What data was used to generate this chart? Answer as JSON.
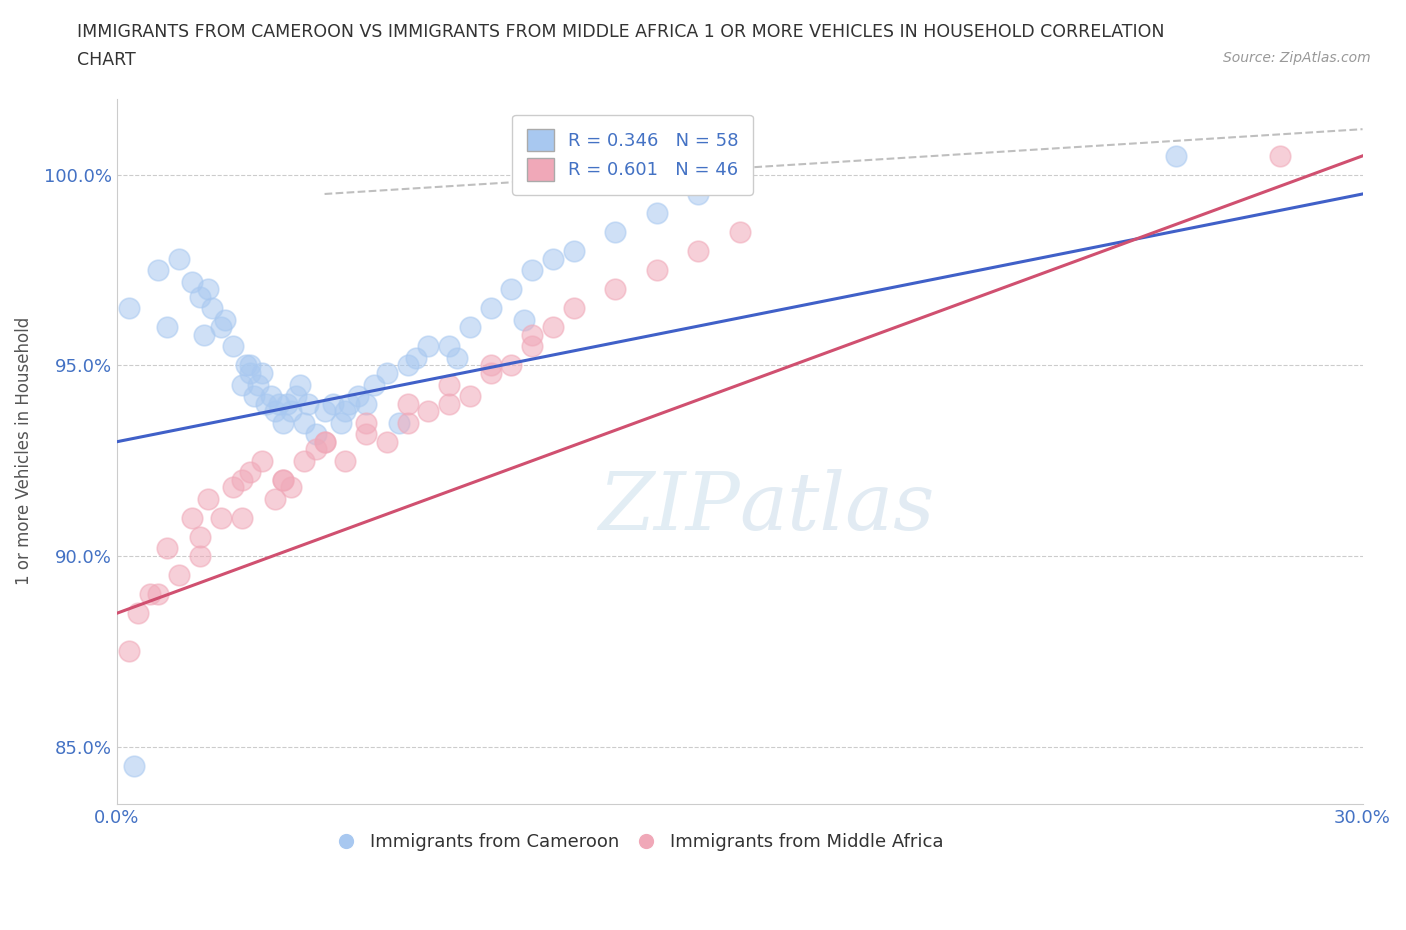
{
  "title_line1": "IMMIGRANTS FROM CAMEROON VS IMMIGRANTS FROM MIDDLE AFRICA 1 OR MORE VEHICLES IN HOUSEHOLD CORRELATION",
  "title_line2": "CHART",
  "source": "Source: ZipAtlas.com",
  "ylabel": "1 or more Vehicles in Household",
  "xlabel": "",
  "xlim": [
    0.0,
    30.0
  ],
  "ylim": [
    83.5,
    102.0
  ],
  "yticks": [
    85.0,
    90.0,
    95.0,
    100.0
  ],
  "ytick_labels": [
    "85.0%",
    "90.0%",
    "95.0%",
    "100.0%"
  ],
  "xticks": [
    0.0,
    5.0,
    10.0,
    15.0,
    20.0,
    25.0,
    30.0
  ],
  "xtick_labels": [
    "0.0%",
    "",
    "",
    "",
    "",
    "",
    "30.0%"
  ],
  "R_cameroon": 0.346,
  "N_cameroon": 58,
  "R_middle_africa": 0.601,
  "N_middle_africa": 46,
  "color_cameroon": "#A8C8F0",
  "color_middle_africa": "#F0A8B8",
  "color_line_cameroon": "#4060C8",
  "color_line_middle_africa": "#D05070",
  "color_dashed": "#AAAAAA",
  "legend_label_cameroon": "Immigrants from Cameroon",
  "legend_label_middle_africa": "Immigrants from Middle Africa",
  "watermark_zip": "ZIP",
  "watermark_atlas": "atlas",
  "background_color": "#FFFFFF",
  "grid_color": "#CCCCCC",
  "cam_x": [
    0.4,
    1.0,
    1.5,
    1.8,
    2.0,
    2.2,
    2.3,
    2.5,
    2.6,
    2.8,
    3.0,
    3.1,
    3.2,
    3.3,
    3.4,
    3.5,
    3.6,
    3.7,
    3.8,
    3.9,
    4.0,
    4.1,
    4.2,
    4.3,
    4.5,
    4.6,
    4.8,
    5.0,
    5.2,
    5.4,
    5.5,
    5.8,
    6.0,
    6.2,
    6.5,
    7.0,
    7.2,
    7.5,
    8.0,
    8.5,
    9.0,
    9.5,
    10.0,
    10.5,
    11.0,
    12.0,
    13.0,
    14.0,
    0.3,
    1.2,
    2.1,
    3.2,
    4.4,
    5.6,
    6.8,
    8.2,
    9.8,
    25.5
  ],
  "cam_y": [
    84.5,
    97.5,
    97.8,
    97.2,
    96.8,
    97.0,
    96.5,
    96.0,
    96.2,
    95.5,
    94.5,
    95.0,
    94.8,
    94.2,
    94.5,
    94.8,
    94.0,
    94.2,
    93.8,
    94.0,
    93.5,
    94.0,
    93.8,
    94.2,
    93.5,
    94.0,
    93.2,
    93.8,
    94.0,
    93.5,
    93.8,
    94.2,
    94.0,
    94.5,
    94.8,
    95.0,
    95.2,
    95.5,
    95.5,
    96.0,
    96.5,
    97.0,
    97.5,
    97.8,
    98.0,
    98.5,
    99.0,
    99.5,
    96.5,
    96.0,
    95.8,
    95.0,
    94.5,
    94.0,
    93.5,
    95.2,
    96.2,
    100.5
  ],
  "mid_x": [
    0.5,
    0.8,
    1.2,
    1.5,
    1.8,
    2.0,
    2.2,
    2.5,
    2.8,
    3.0,
    3.2,
    3.5,
    3.8,
    4.0,
    4.2,
    4.5,
    4.8,
    5.0,
    5.5,
    6.0,
    6.5,
    7.0,
    7.5,
    8.0,
    8.5,
    9.0,
    9.5,
    10.0,
    10.5,
    11.0,
    12.0,
    13.0,
    14.0,
    15.0,
    0.3,
    1.0,
    2.0,
    3.0,
    4.0,
    5.0,
    6.0,
    7.0,
    8.0,
    9.0,
    10.0,
    28.0
  ],
  "mid_y": [
    88.5,
    89.0,
    90.2,
    89.5,
    91.0,
    90.5,
    91.5,
    91.0,
    91.8,
    92.0,
    92.2,
    92.5,
    91.5,
    92.0,
    91.8,
    92.5,
    92.8,
    93.0,
    92.5,
    93.2,
    93.0,
    93.5,
    93.8,
    94.0,
    94.2,
    94.8,
    95.0,
    95.5,
    96.0,
    96.5,
    97.0,
    97.5,
    98.0,
    98.5,
    87.5,
    89.0,
    90.0,
    91.0,
    92.0,
    93.0,
    93.5,
    94.0,
    94.5,
    95.0,
    95.8,
    100.5
  ],
  "cam_line_x": [
    0.0,
    30.0
  ],
  "cam_line_y": [
    93.0,
    99.5
  ],
  "mid_line_x": [
    0.0,
    30.0
  ],
  "mid_line_y": [
    88.5,
    100.5
  ],
  "dash_line_x": [
    5.0,
    30.0
  ],
  "dash_line_y": [
    99.5,
    101.2
  ]
}
